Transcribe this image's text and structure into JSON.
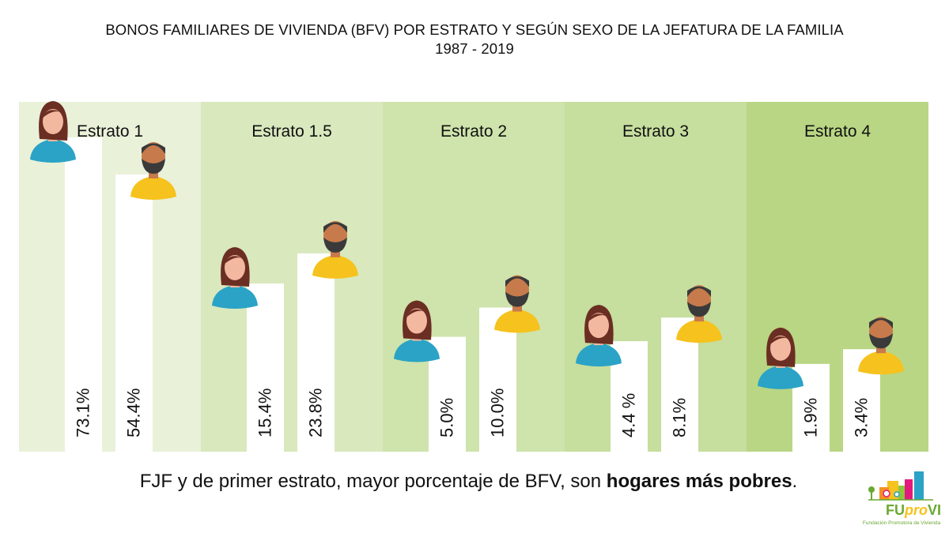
{
  "header": {
    "title_line1": "BONOS FAMILIARES DE VIVIENDA (BFV) POR ESTRATO Y SEGÚN SEXO DE LA JEFATURA DE LA FAMILIA",
    "title_line2": "1987 - 2019"
  },
  "footer": {
    "caption_lead": "FJF y de primer estrato, mayor porcentaje de BFV, son ",
    "caption_bold": "hogares más pobres",
    "caption_end": "."
  },
  "logo": {
    "name_fu": "FU",
    "name_pro": "pro",
    "name_vi": "VI",
    "subtitle": "Fundación Promotora de Vivienda"
  },
  "colors": {
    "panel_bands": [
      "#e9f1d9",
      "#d9e8bd",
      "#cfe3ac",
      "#c6de9e",
      "#b9d684"
    ],
    "female_shirt": "#2aa3c6",
    "male_shirt": "#f6c21d",
    "bar_fill": "#ffffff",
    "logo_text": "#6aa832"
  },
  "chart_data": {
    "type": "bar",
    "categories": [
      "Estrato 1",
      "Estrato 1.5",
      "Estrato 2",
      "Estrato 3",
      "Estrato 4"
    ],
    "series": [
      {
        "values": [
          73.1,
          15.4,
          5.0,
          4.4,
          1.9
        ],
        "labels": [
          "73.1%",
          "15.4%",
          "5.0%",
          "4.4 %",
          "1.9%"
        ],
        "icon": "woman-icon"
      },
      {
        "values": [
          54.4,
          23.8,
          10.0,
          8.1,
          3.4
        ],
        "labels": [
          "54.4%",
          "23.8%",
          "10.0%",
          "8.1%",
          "3.4%"
        ],
        "icon": "man-icon"
      }
    ],
    "title": "BONOS FAMILIARES DE VIVIENDA (BFV) POR ESTRATO Y SEGÚN SEXO DE LA JEFATURA DE LA FAMILIA",
    "subtitle": "1987 - 2019",
    "value_axis": "nonlinear (pictogram)",
    "grid": false,
    "legend": "none"
  }
}
